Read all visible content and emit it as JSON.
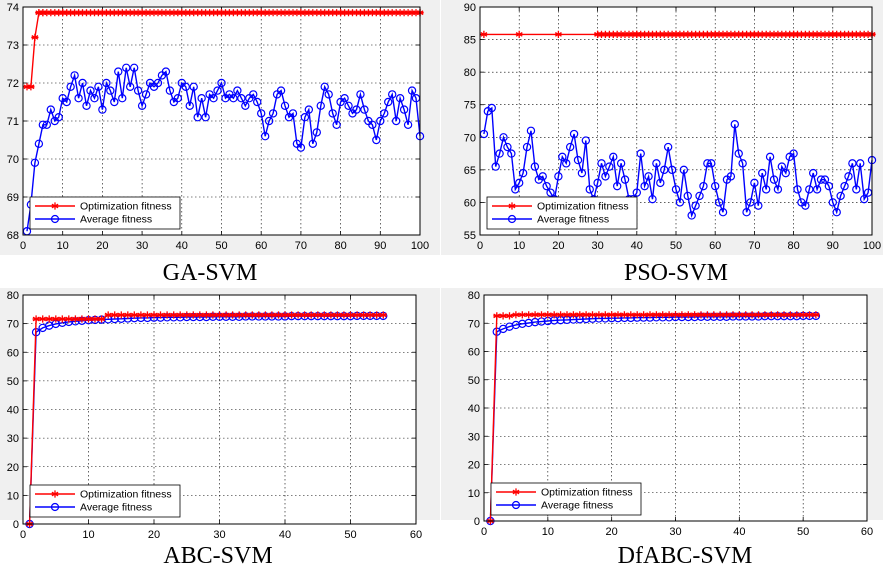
{
  "colors": {
    "optimization": "#ff0000",
    "average": "#0000ff",
    "grid": "#000000",
    "axes_bg": "#ffffff",
    "panel_bg": "#f0f0f0"
  },
  "chart_data": [
    {
      "type": "line",
      "caption": "GA-SVM",
      "title": "",
      "xlabel": "",
      "ylabel": "",
      "xlim": [
        0,
        100
      ],
      "ylim": [
        68,
        74
      ],
      "xticks": [
        0,
        10,
        20,
        30,
        40,
        50,
        60,
        70,
        80,
        90,
        100
      ],
      "yticks": [
        68,
        69,
        70,
        71,
        72,
        73,
        74
      ],
      "grid": true,
      "legend": "bottom-left",
      "series": [
        {
          "name": "Optimization fitness",
          "marker": "star",
          "x": [
            1,
            2,
            3,
            4,
            5,
            10,
            20,
            30,
            40,
            50,
            60,
            70,
            80,
            90,
            100
          ],
          "y": [
            71.9,
            71.9,
            73.2,
            73.85,
            73.85,
            73.85,
            73.85,
            73.85,
            73.85,
            73.85,
            73.85,
            73.85,
            73.85,
            73.85,
            73.85
          ]
        },
        {
          "name": "Average fitness",
          "marker": "circle",
          "x": [
            1,
            2,
            3,
            4,
            5,
            6,
            7,
            8,
            9,
            10,
            11,
            12,
            13,
            14,
            15,
            16,
            17,
            18,
            19,
            20,
            21,
            22,
            23,
            24,
            25,
            26,
            27,
            28,
            29,
            30,
            31,
            32,
            33,
            34,
            35,
            36,
            37,
            38,
            39,
            40,
            41,
            42,
            43,
            44,
            45,
            46,
            47,
            48,
            49,
            50,
            51,
            52,
            53,
            54,
            55,
            56,
            57,
            58,
            59,
            60,
            61,
            62,
            63,
            64,
            65,
            66,
            67,
            68,
            69,
            70,
            71,
            72,
            73,
            74,
            75,
            76,
            77,
            78,
            79,
            80,
            81,
            82,
            83,
            84,
            85,
            86,
            87,
            88,
            89,
            90,
            91,
            92,
            93,
            94,
            95,
            96,
            97,
            98,
            99,
            100
          ],
          "y": [
            68.1,
            68.8,
            69.9,
            70.4,
            70.9,
            70.9,
            71.3,
            71.0,
            71.1,
            71.6,
            71.5,
            71.9,
            72.2,
            71.6,
            72.0,
            71.4,
            71.8,
            71.6,
            71.9,
            71.3,
            72.0,
            71.8,
            71.5,
            72.3,
            71.6,
            72.4,
            71.9,
            72.4,
            71.8,
            71.4,
            71.7,
            72.0,
            71.9,
            72.0,
            72.2,
            72.3,
            71.8,
            71.5,
            71.6,
            72.0,
            71.9,
            71.4,
            71.9,
            71.1,
            71.6,
            71.1,
            71.7,
            71.6,
            71.8,
            72.0,
            71.6,
            71.7,
            71.6,
            71.8,
            71.6,
            71.4,
            71.6,
            71.7,
            71.5,
            71.2,
            70.6,
            71.0,
            71.2,
            71.7,
            71.8,
            71.4,
            71.1,
            71.2,
            70.4,
            70.3,
            71.1,
            71.3,
            70.4,
            70.7,
            71.4,
            71.9,
            71.7,
            71.2,
            70.9,
            71.5,
            71.6,
            71.4,
            71.2,
            71.3,
            71.7,
            71.3,
            71.0,
            70.9,
            70.5,
            71.0,
            71.2,
            71.5,
            71.7,
            71.0,
            71.6,
            71.3,
            70.9,
            71.8,
            71.6,
            70.6
          ]
        }
      ]
    },
    {
      "type": "line",
      "caption": "PSO-SVM",
      "title": "",
      "xlabel": "",
      "ylabel": "",
      "xlim": [
        0,
        100
      ],
      "ylim": [
        55,
        90
      ],
      "xticks": [
        0,
        10,
        20,
        30,
        40,
        50,
        60,
        70,
        80,
        90,
        100
      ],
      "yticks": [
        55,
        60,
        65,
        70,
        75,
        80,
        85,
        90
      ],
      "grid": true,
      "legend": "bottom-left",
      "series": [
        {
          "name": "Optimization fitness",
          "marker": "star",
          "x": [
            1,
            10,
            20,
            30,
            40,
            50,
            60,
            70,
            80,
            90,
            100
          ],
          "y": [
            85.8,
            85.8,
            85.8,
            85.8,
            85.8,
            85.8,
            85.8,
            85.8,
            85.8,
            85.8,
            85.8
          ]
        },
        {
          "name": "Average fitness",
          "marker": "circle",
          "x": [
            1,
            2,
            3,
            4,
            5,
            6,
            7,
            8,
            9,
            10,
            11,
            12,
            13,
            14,
            15,
            16,
            17,
            18,
            19,
            20,
            21,
            22,
            23,
            24,
            25,
            26,
            27,
            28,
            29,
            30,
            31,
            32,
            33,
            34,
            35,
            36,
            37,
            38,
            39,
            40,
            41,
            42,
            43,
            44,
            45,
            46,
            47,
            48,
            49,
            50,
            51,
            52,
            53,
            54,
            55,
            56,
            57,
            58,
            59,
            60,
            61,
            62,
            63,
            64,
            65,
            66,
            67,
            68,
            69,
            70,
            71,
            72,
            73,
            74,
            75,
            76,
            77,
            78,
            79,
            80,
            81,
            82,
            83,
            84,
            85,
            86,
            87,
            88,
            89,
            90,
            91,
            92,
            93,
            94,
            95,
            96,
            97,
            98,
            99,
            100
          ],
          "y": [
            70.5,
            74.0,
            74.5,
            65.5,
            67.5,
            70.0,
            68.5,
            67.5,
            62.0,
            63.0,
            64.5,
            68.5,
            71.0,
            65.5,
            63.5,
            64.0,
            62.5,
            61.5,
            60.5,
            64.0,
            67.0,
            66.0,
            68.5,
            70.5,
            66.5,
            64.5,
            69.5,
            62.0,
            60.5,
            63.0,
            66.0,
            64.0,
            65.5,
            67.0,
            62.5,
            66.0,
            63.5,
            60.5,
            60.5,
            61.5,
            67.5,
            62.5,
            64.0,
            60.5,
            66.0,
            63.0,
            65.0,
            68.5,
            65.0,
            62.0,
            60.0,
            65.0,
            61.0,
            58.0,
            59.5,
            61.0,
            62.5,
            66.0,
            66.0,
            62.5,
            60.0,
            58.5,
            63.5,
            64.0,
            72.0,
            67.5,
            66.0,
            58.5,
            60.0,
            63.0,
            59.5,
            64.5,
            62.0,
            67.0,
            63.5,
            62.0,
            65.5,
            64.5,
            67.0,
            67.5,
            62.0,
            60.0,
            59.5,
            62.0,
            64.5,
            62.0,
            63.5,
            63.5,
            62.5,
            60.0,
            58.5,
            61.0,
            62.5,
            64.0,
            66.0,
            62.0,
            66.0,
            60.5,
            61.5,
            66.5
          ]
        }
      ]
    },
    {
      "type": "line",
      "caption": "ABC-SVM",
      "title": "",
      "xlabel": "",
      "ylabel": "",
      "xlim": [
        0,
        60
      ],
      "ylim": [
        0,
        80
      ],
      "xticks": [
        0,
        10,
        20,
        30,
        40,
        50,
        60
      ],
      "yticks": [
        0,
        10,
        20,
        30,
        40,
        50,
        60,
        70,
        80
      ],
      "grid": true,
      "legend": "bottom-left",
      "series": [
        {
          "name": "Optimization fitness",
          "marker": "star",
          "x": [
            1,
            2,
            3,
            4,
            5,
            6,
            7,
            8,
            9,
            10,
            11,
            12,
            13,
            14,
            15,
            16,
            17,
            18,
            19,
            20,
            21,
            22,
            23,
            24,
            25,
            26,
            27,
            28,
            29,
            30,
            31,
            32,
            33,
            34,
            35,
            36,
            37,
            38,
            39,
            40,
            41,
            42,
            43,
            44,
            45,
            46,
            47,
            48,
            49,
            50,
            51,
            52,
            53,
            54,
            55
          ],
          "y": [
            0,
            71.6,
            71.6,
            71.6,
            71.6,
            71.6,
            71.6,
            71.6,
            71.6,
            71.6,
            71.6,
            71.6,
            73.0,
            73.0,
            73.0,
            73.0,
            73.0,
            73.0,
            73.0,
            73.0,
            73.0,
            73.0,
            73.0,
            73.0,
            73.0,
            73.0,
            73.0,
            73.0,
            73.0,
            73.0,
            73.0,
            73.0,
            73.0,
            73.0,
            73.0,
            73.0,
            73.0,
            73.0,
            73.0,
            73.0,
            73.0,
            73.0,
            73.0,
            73.0,
            73.0,
            73.0,
            73.0,
            73.0,
            73.0,
            73.0,
            73.0,
            73.0,
            73.0,
            73.0,
            73.0
          ]
        },
        {
          "name": "Average fitness",
          "marker": "circle",
          "x": [
            1,
            2,
            3,
            4,
            5,
            6,
            7,
            8,
            9,
            10,
            11,
            12,
            13,
            14,
            15,
            16,
            17,
            18,
            19,
            20,
            21,
            22,
            23,
            24,
            25,
            26,
            27,
            28,
            29,
            30,
            31,
            32,
            33,
            34,
            35,
            36,
            37,
            38,
            39,
            40,
            41,
            42,
            43,
            44,
            45,
            46,
            47,
            48,
            49,
            50,
            51,
            52,
            53,
            54,
            55
          ],
          "y": [
            0,
            67.0,
            68.5,
            69.3,
            69.9,
            70.3,
            70.6,
            70.8,
            71.0,
            71.2,
            71.3,
            71.4,
            71.5,
            71.6,
            71.7,
            71.8,
            71.9,
            72.0,
            72.0,
            72.1,
            72.1,
            72.2,
            72.2,
            72.2,
            72.3,
            72.3,
            72.3,
            72.3,
            72.4,
            72.4,
            72.4,
            72.4,
            72.4,
            72.5,
            72.5,
            72.5,
            72.5,
            72.5,
            72.5,
            72.5,
            72.6,
            72.6,
            72.6,
            72.6,
            72.6,
            72.6,
            72.6,
            72.6,
            72.6,
            72.6,
            72.7,
            72.7,
            72.7,
            72.7,
            72.7
          ]
        }
      ]
    },
    {
      "type": "line",
      "caption": "DfABC-SVM",
      "title": "",
      "xlabel": "",
      "ylabel": "",
      "xlim": [
        0,
        60
      ],
      "ylim": [
        0,
        80
      ],
      "xticks": [
        0,
        10,
        20,
        30,
        40,
        50,
        60
      ],
      "yticks": [
        0,
        10,
        20,
        30,
        40,
        50,
        60,
        70,
        80
      ],
      "grid": true,
      "legend": "bottom-left",
      "series": [
        {
          "name": "Optimization fitness",
          "marker": "star",
          "x": [
            1,
            2,
            3,
            4,
            5,
            6,
            7,
            8,
            9,
            10,
            11,
            12,
            13,
            14,
            15,
            16,
            17,
            18,
            19,
            20,
            21,
            22,
            23,
            24,
            25,
            26,
            27,
            28,
            29,
            30,
            31,
            32,
            33,
            34,
            35,
            36,
            37,
            38,
            39,
            40,
            41,
            42,
            43,
            44,
            45,
            46,
            47,
            48,
            49,
            50,
            51,
            52
          ],
          "y": [
            0,
            72.6,
            72.6,
            72.6,
            73.0,
            73.0,
            73.0,
            73.0,
            73.0,
            73.0,
            73.0,
            73.0,
            73.0,
            73.0,
            73.0,
            73.0,
            73.0,
            73.0,
            73.0,
            73.0,
            73.0,
            73.0,
            73.0,
            73.0,
            73.0,
            73.0,
            73.0,
            73.0,
            73.0,
            73.0,
            73.0,
            73.0,
            73.0,
            73.0,
            73.0,
            73.0,
            73.0,
            73.0,
            73.0,
            73.0,
            73.0,
            73.0,
            73.0,
            73.0,
            73.0,
            73.0,
            73.0,
            73.0,
            73.0,
            73.0,
            73.0,
            73.0
          ]
        },
        {
          "name": "Average fitness",
          "marker": "circle",
          "x": [
            1,
            2,
            3,
            4,
            5,
            6,
            7,
            8,
            9,
            10,
            11,
            12,
            13,
            14,
            15,
            16,
            17,
            18,
            19,
            20,
            21,
            22,
            23,
            24,
            25,
            26,
            27,
            28,
            29,
            30,
            31,
            32,
            33,
            34,
            35,
            36,
            37,
            38,
            39,
            40,
            41,
            42,
            43,
            44,
            45,
            46,
            47,
            48,
            49,
            50,
            51,
            52
          ],
          "y": [
            0,
            67.0,
            68.0,
            68.8,
            69.4,
            69.8,
            70.1,
            70.4,
            70.6,
            70.8,
            71.0,
            71.1,
            71.2,
            71.3,
            71.4,
            71.5,
            71.6,
            71.7,
            71.7,
            71.8,
            71.8,
            71.9,
            71.9,
            72.0,
            72.0,
            72.0,
            72.1,
            72.1,
            72.1,
            72.2,
            72.2,
            72.2,
            72.2,
            72.3,
            72.3,
            72.3,
            72.3,
            72.3,
            72.4,
            72.4,
            72.4,
            72.4,
            72.4,
            72.5,
            72.5,
            72.5,
            72.5,
            72.5,
            72.5,
            72.6,
            72.6,
            72.6
          ]
        }
      ]
    }
  ]
}
